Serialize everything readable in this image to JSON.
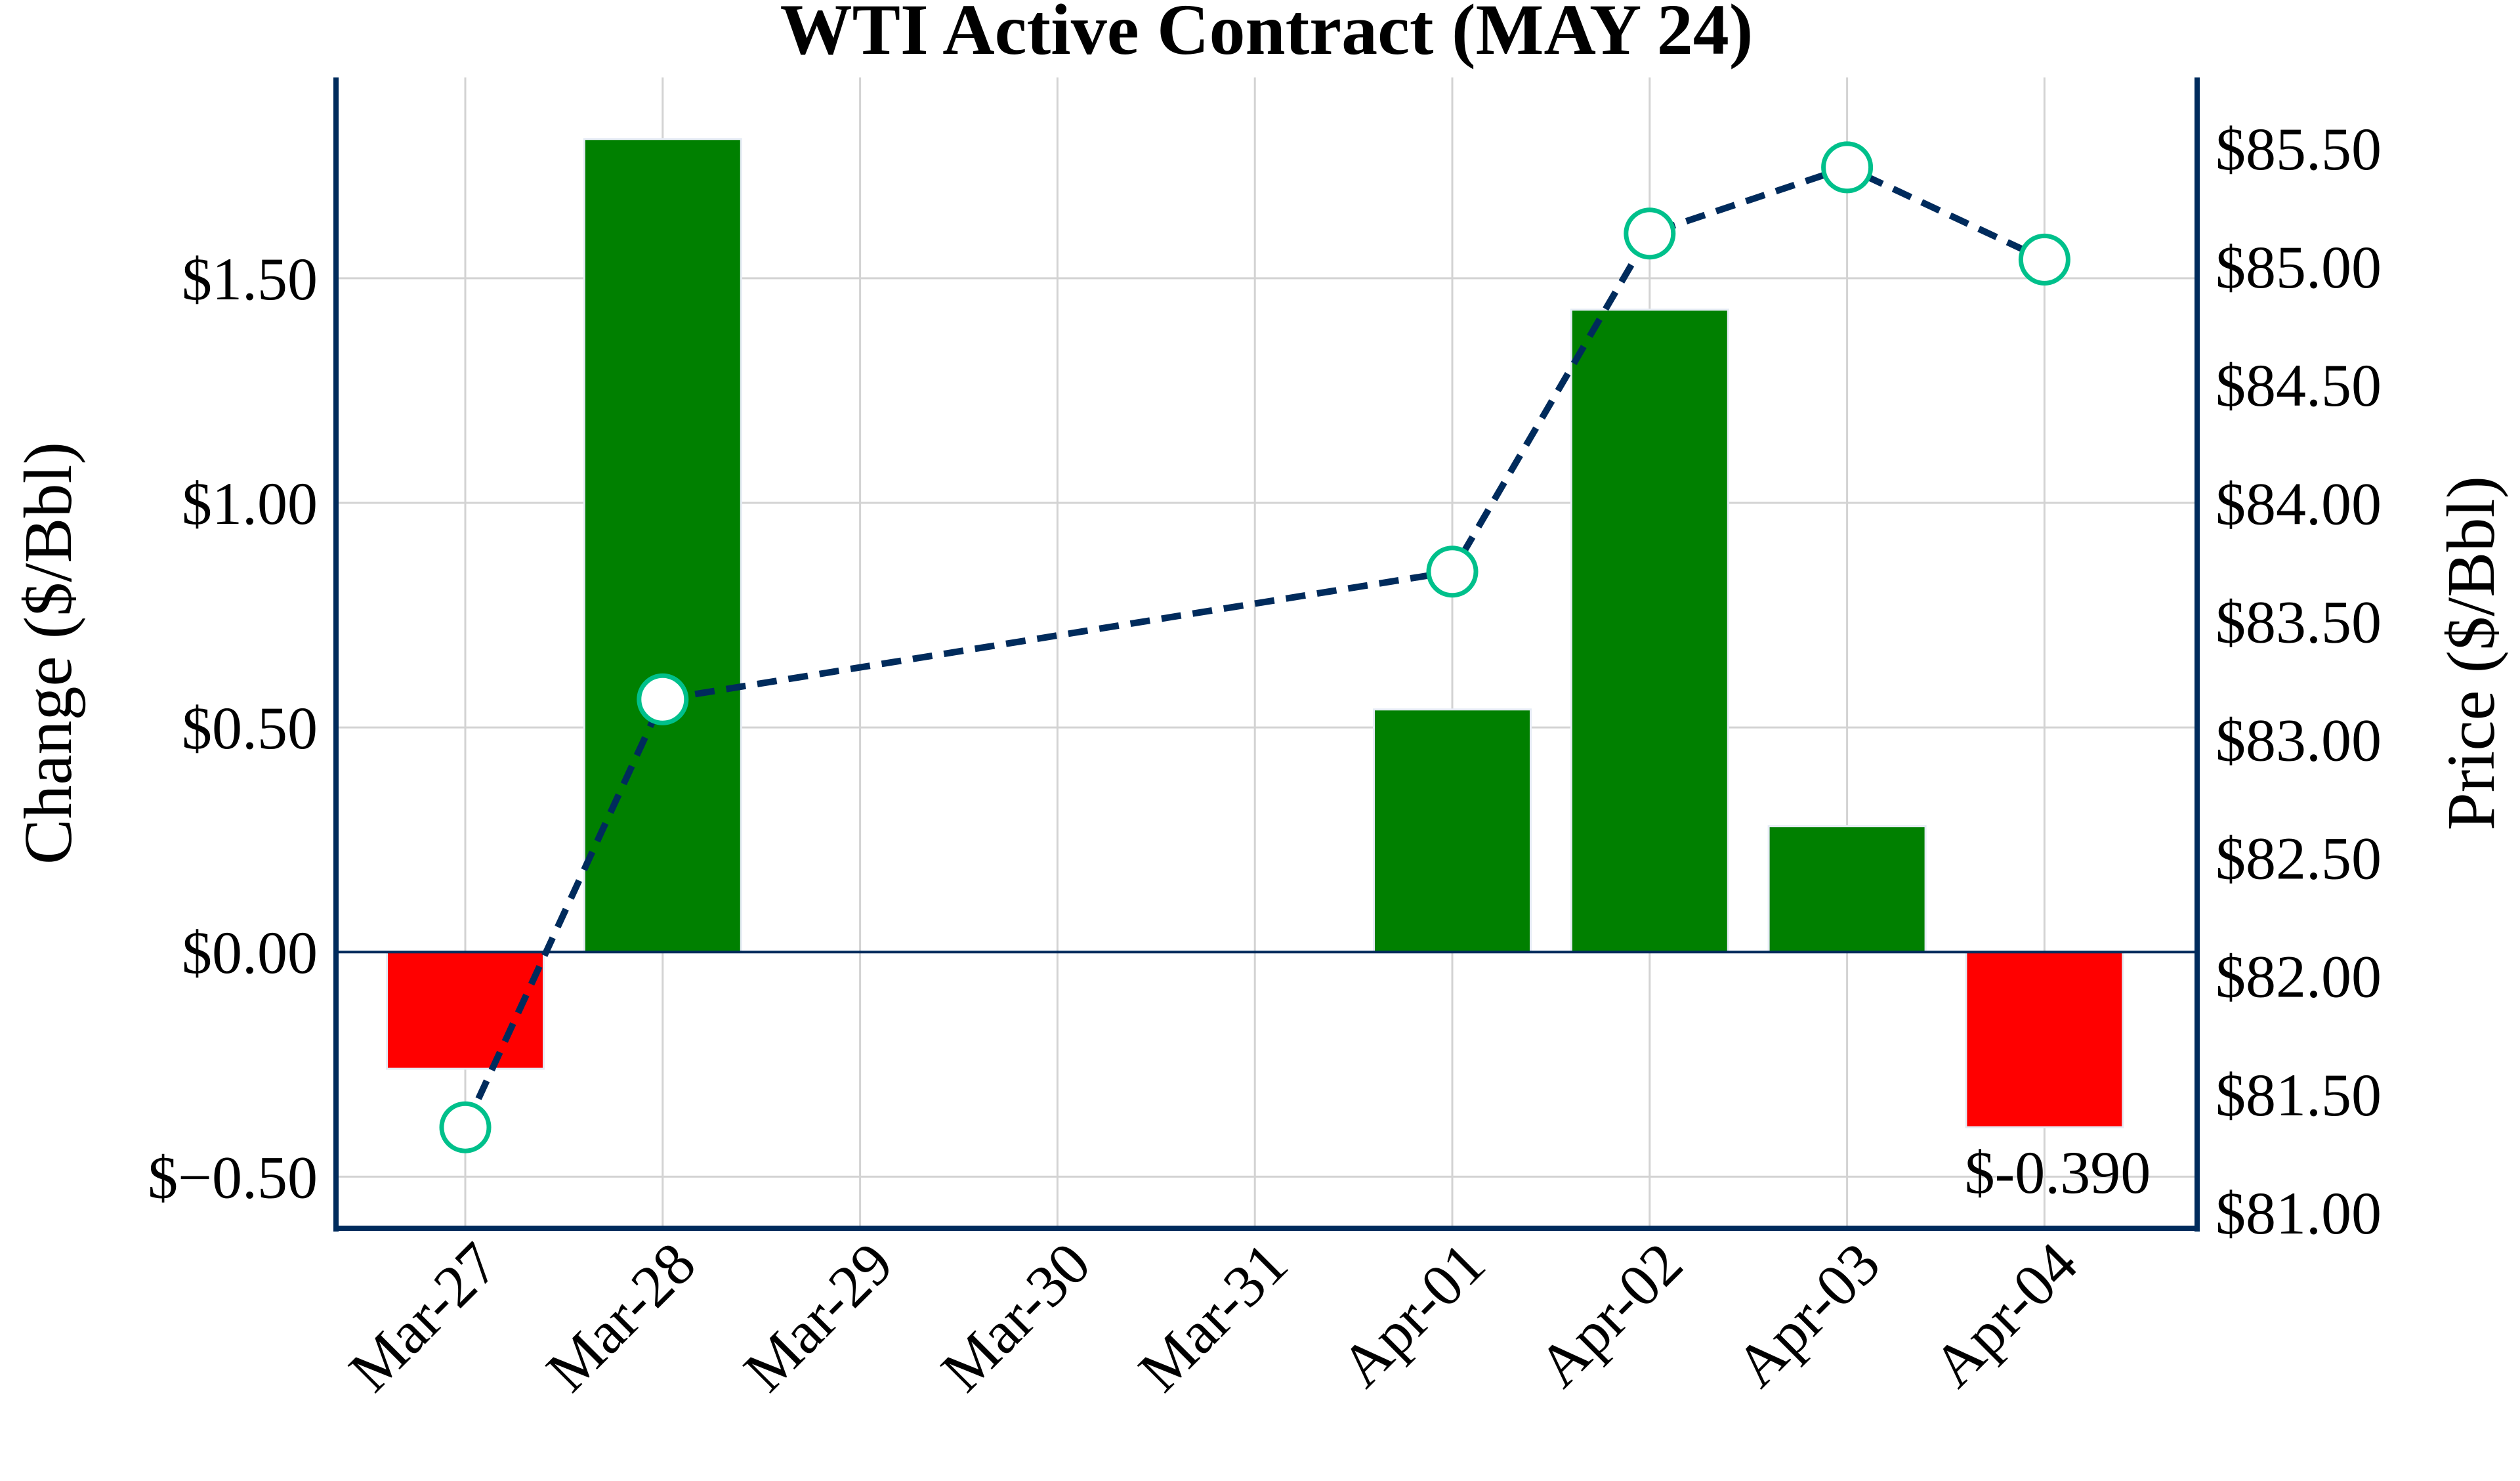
{
  "chart_data": {
    "type": "bar+line",
    "title": "WTI Active Contract (MAY 24)",
    "ylabel_left": "Change ($/Bbl)",
    "ylabel_right": "Price ($/Bbl)",
    "categories": [
      "Mar-27",
      "Mar-28",
      "Mar-29",
      "Mar-30",
      "Mar-31",
      "Apr-01",
      "Apr-02",
      "Apr-03",
      "Apr-04"
    ],
    "series": [
      {
        "name": "Change",
        "type": "bar",
        "axis": "left",
        "values": [
          -0.26,
          1.81,
          null,
          null,
          null,
          0.54,
          1.43,
          0.28,
          -0.39
        ],
        "positive_color": "#008000",
        "negative_color": "#ff0000"
      },
      {
        "name": "Price",
        "type": "line",
        "axis": "right",
        "values": [
          81.36,
          83.17,
          null,
          null,
          null,
          83.71,
          85.14,
          85.42,
          85.03
        ],
        "line_color": "#002b5c",
        "marker_color": "#00c08b"
      }
    ],
    "left_ticks": [
      -0.5,
      0,
      0.5,
      1.0,
      1.5
    ],
    "left_tick_labels": [
      "$−0.50",
      "$0.00",
      "$0.50",
      "$1.00",
      "$1.50"
    ],
    "left_ylim": [
      -0.615,
      1.947
    ],
    "right_ticks": [
      81,
      81.5,
      82,
      82.5,
      83,
      83.5,
      84,
      84.5,
      85,
      85.5
    ],
    "right_tick_labels": [
      "$81.00",
      "$81.50",
      "$82.00",
      "$82.50",
      "$83.00",
      "$83.50",
      "$84.00",
      "$84.50",
      "$85.00",
      "$85.50"
    ],
    "right_ylim": [
      80.933,
      85.8
    ],
    "annotation": {
      "category": "Apr-04",
      "text": "$-0.390"
    },
    "grid": true,
    "axis_color": "#002b5c"
  }
}
